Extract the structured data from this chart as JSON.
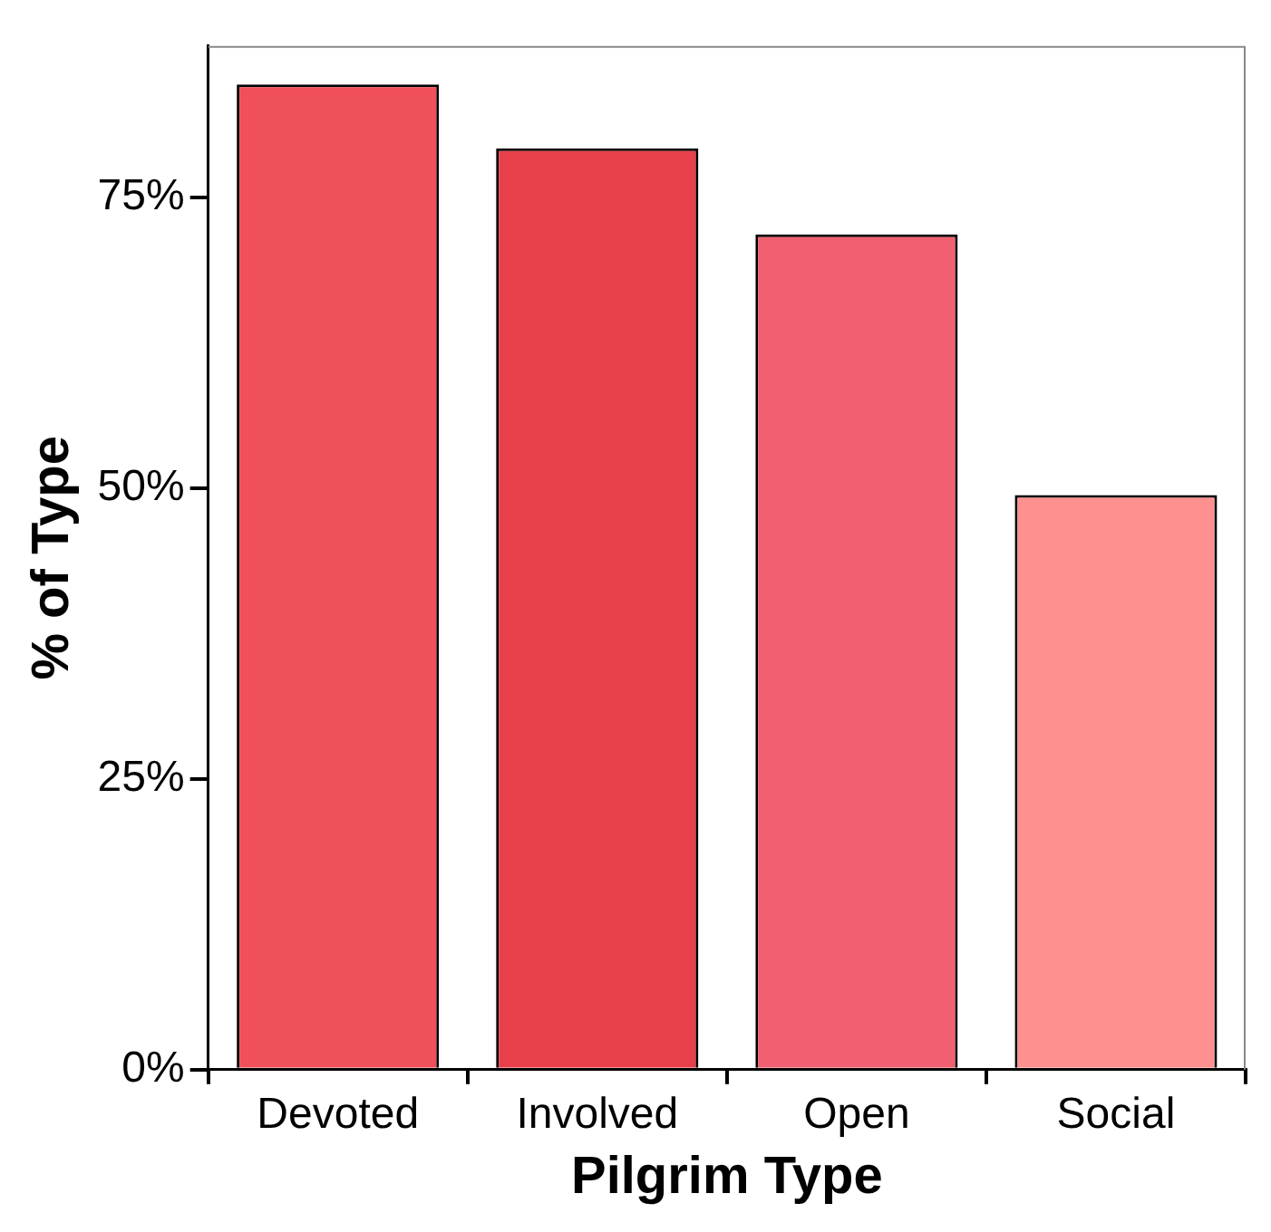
{
  "chart_data": {
    "type": "bar",
    "xlabel": "Pilgrim Type",
    "ylabel": "% of Type",
    "categories": [
      "Devoted",
      "Involved",
      "Open",
      "Social"
    ],
    "values": [
      84.7,
      79.2,
      71.8,
      49.4
    ],
    "colors": [
      "#f0505a",
      "#e8404a",
      "#f06070",
      "#ff9090"
    ],
    "ylim": [
      0,
      88
    ],
    "yticks": [
      {
        "value": 0,
        "label": "0%"
      },
      {
        "value": 25,
        "label": "25%"
      },
      {
        "value": 50,
        "label": "50%"
      },
      {
        "value": 75,
        "label": "75%"
      }
    ],
    "grid": false,
    "legend": false
  }
}
